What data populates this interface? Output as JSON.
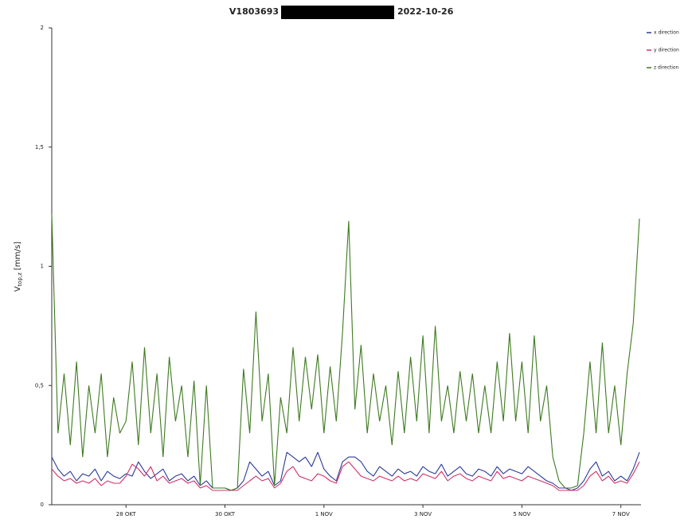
{
  "chart_data": {
    "type": "line",
    "title_left": "V1803693",
    "title_right": "2022-10-26",
    "y_label": {
      "main": "V",
      "sub": "top,z",
      "unit": "[mm/s]"
    },
    "categories": [
      null,
      null,
      null,
      null,
      null,
      null,
      null,
      null,
      null,
      null,
      null,
      null,
      "28 OKT",
      null,
      null,
      null,
      null,
      null,
      null,
      null,
      null,
      null,
      null,
      null,
      null,
      null,
      null,
      null,
      "30 OKT",
      null,
      null,
      null,
      null,
      null,
      null,
      null,
      null,
      null,
      null,
      null,
      null,
      null,
      null,
      null,
      "1 NOV",
      null,
      null,
      null,
      null,
      null,
      null,
      null,
      null,
      null,
      null,
      null,
      null,
      null,
      null,
      null,
      "3 NOV",
      null,
      null,
      null,
      null,
      null,
      null,
      null,
      null,
      null,
      null,
      null,
      null,
      null,
      null,
      null,
      "5 NOV",
      null,
      null,
      null,
      null,
      null,
      null,
      null,
      null,
      null,
      null,
      null,
      null,
      null,
      null,
      null,
      "7 NOV",
      null,
      null,
      null
    ],
    "series": [
      {
        "name": "x direction",
        "color": "#2b3a9a",
        "values": [
          0.2,
          0.15,
          0.12,
          0.14,
          0.1,
          0.13,
          0.12,
          0.15,
          0.1,
          0.14,
          0.12,
          0.11,
          0.13,
          0.12,
          0.18,
          0.14,
          0.11,
          0.13,
          0.15,
          0.1,
          0.12,
          0.13,
          0.1,
          0.12,
          0.08,
          0.1,
          0.07,
          0.07,
          0.07,
          0.06,
          0.07,
          0.1,
          0.18,
          0.15,
          0.12,
          0.14,
          0.08,
          0.1,
          0.22,
          0.2,
          0.18,
          0.2,
          0.16,
          0.22,
          0.15,
          0.12,
          0.1,
          0.18,
          0.2,
          0.2,
          0.18,
          0.14,
          0.12,
          0.16,
          0.14,
          0.12,
          0.15,
          0.13,
          0.14,
          0.12,
          0.16,
          0.14,
          0.13,
          0.17,
          0.12,
          0.14,
          0.16,
          0.13,
          0.12,
          0.15,
          0.14,
          0.12,
          0.16,
          0.13,
          0.15,
          0.14,
          0.13,
          0.16,
          0.14,
          0.12,
          0.1,
          0.09,
          0.07,
          0.07,
          0.06,
          0.07,
          0.1,
          0.15,
          0.18,
          0.12,
          0.14,
          0.1,
          0.12,
          0.1,
          0.15,
          0.22
        ]
      },
      {
        "name": "y direction",
        "color": "#d0306a",
        "values": [
          0.15,
          0.12,
          0.1,
          0.11,
          0.09,
          0.1,
          0.09,
          0.11,
          0.08,
          0.1,
          0.09,
          0.09,
          0.12,
          0.17,
          0.15,
          0.12,
          0.16,
          0.1,
          0.12,
          0.09,
          0.1,
          0.11,
          0.09,
          0.1,
          0.07,
          0.08,
          0.06,
          0.06,
          0.06,
          0.06,
          0.06,
          0.08,
          0.1,
          0.12,
          0.1,
          0.11,
          0.07,
          0.09,
          0.14,
          0.16,
          0.12,
          0.11,
          0.1,
          0.13,
          0.12,
          0.1,
          0.09,
          0.16,
          0.18,
          0.15,
          0.12,
          0.11,
          0.1,
          0.12,
          0.11,
          0.1,
          0.12,
          0.1,
          0.11,
          0.1,
          0.13,
          0.12,
          0.11,
          0.14,
          0.1,
          0.12,
          0.13,
          0.11,
          0.1,
          0.12,
          0.11,
          0.1,
          0.14,
          0.11,
          0.12,
          0.11,
          0.1,
          0.12,
          0.11,
          0.1,
          0.09,
          0.08,
          0.06,
          0.06,
          0.06,
          0.06,
          0.08,
          0.12,
          0.14,
          0.1,
          0.12,
          0.09,
          0.1,
          0.09,
          0.13,
          0.18
        ]
      },
      {
        "name": "z direction",
        "color": "#3d7a1f",
        "values": [
          1.22,
          0.3,
          0.55,
          0.25,
          0.6,
          0.2,
          0.5,
          0.3,
          0.55,
          0.2,
          0.45,
          0.3,
          0.35,
          0.6,
          0.25,
          0.66,
          0.3,
          0.55,
          0.2,
          0.62,
          0.35,
          0.5,
          0.2,
          0.52,
          0.08,
          0.5,
          0.07,
          0.07,
          0.07,
          0.06,
          0.07,
          0.57,
          0.3,
          0.81,
          0.35,
          0.55,
          0.08,
          0.45,
          0.3,
          0.66,
          0.35,
          0.62,
          0.4,
          0.63,
          0.3,
          0.58,
          0.35,
          0.72,
          1.19,
          0.4,
          0.67,
          0.3,
          0.55,
          0.35,
          0.5,
          0.25,
          0.56,
          0.3,
          0.62,
          0.35,
          0.71,
          0.3,
          0.75,
          0.35,
          0.5,
          0.3,
          0.56,
          0.35,
          0.55,
          0.3,
          0.5,
          0.3,
          0.6,
          0.35,
          0.72,
          0.35,
          0.6,
          0.3,
          0.71,
          0.35,
          0.5,
          0.2,
          0.1,
          0.07,
          0.07,
          0.08,
          0.3,
          0.6,
          0.3,
          0.68,
          0.3,
          0.5,
          0.25,
          0.55,
          0.76,
          1.2
        ]
      }
    ],
    "ylim": [
      0,
      2
    ],
    "yticks": [
      0,
      {
        "value": 0.5,
        "label": "0,5"
      },
      1,
      {
        "value": 1.5,
        "label": "1,5"
      },
      2
    ],
    "grid": false,
    "legend": "top-right"
  }
}
